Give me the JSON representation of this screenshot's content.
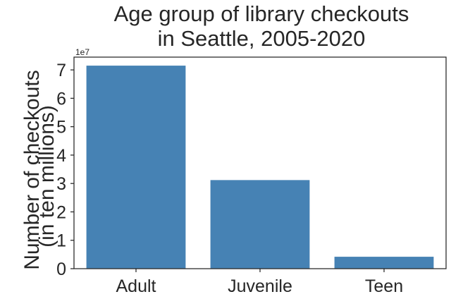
{
  "chart_data": {
    "type": "bar",
    "title": [
      "Age group of library checkouts",
      "in Seattle, 2005-2020"
    ],
    "ylabel": [
      "Number of checkouts",
      "(in ten millions)"
    ],
    "xlabel": "",
    "offset_text": "1e7",
    "categories": [
      "Adult",
      "Juvenile",
      "Teen"
    ],
    "values": [
      71500000,
      31200000,
      4200000
    ],
    "ylim": [
      0,
      74500000
    ],
    "yticks": [
      0,
      10000000,
      20000000,
      30000000,
      40000000,
      50000000,
      60000000,
      70000000
    ],
    "ytick_labels": [
      "0",
      "1",
      "2",
      "3",
      "4",
      "5",
      "6",
      "7"
    ],
    "bar_color": "#4682b4",
    "grid": false,
    "legend": "none"
  }
}
